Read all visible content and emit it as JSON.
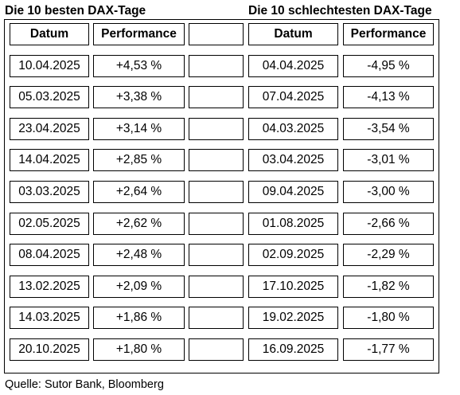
{
  "titles": {
    "best": "Die 10 besten DAX-Tage",
    "worst": "Die 10 schlechtesten DAX-Tage"
  },
  "headers": {
    "date": "Datum",
    "performance": "Performance"
  },
  "best_rows": [
    {
      "date": "10.04.2025",
      "performance": "+4,53 %"
    },
    {
      "date": "05.03.2025",
      "performance": "+3,38 %"
    },
    {
      "date": "23.04.2025",
      "performance": "+3,14 %"
    },
    {
      "date": "14.04.2025",
      "performance": "+2,85 %"
    },
    {
      "date": "03.03.2025",
      "performance": "+2,64 %"
    },
    {
      "date": "02.05.2025",
      "performance": "+2,62 %"
    },
    {
      "date": "08.04.2025",
      "performance": "+2,48 %"
    },
    {
      "date": "13.02.2025",
      "performance": "+2,09 %"
    },
    {
      "date": "14.03.2025",
      "performance": "+1,86 %"
    },
    {
      "date": "20.10.2025",
      "performance": "+1,80 %"
    }
  ],
  "worst_rows": [
    {
      "date": "04.04.2025",
      "performance": "-4,95 %"
    },
    {
      "date": "07.04.2025",
      "performance": "-4,13 %"
    },
    {
      "date": "04.03.2025",
      "performance": "-3,54 %"
    },
    {
      "date": "03.04.2025",
      "performance": "-3,01 %"
    },
    {
      "date": "09.04.2025",
      "performance": "-3,00 %"
    },
    {
      "date": "01.08.2025",
      "performance": "-2,66 %"
    },
    {
      "date": "02.09.2025",
      "performance": "-2,29 %"
    },
    {
      "date": "17.10.2025",
      "performance": "-1,82 %"
    },
    {
      "date": "19.02.2025",
      "performance": "-1,80 %"
    },
    {
      "date": "16.09.2025",
      "performance": "-1,77 %"
    }
  ],
  "source": "Quelle: Sutor Bank, Bloomberg"
}
